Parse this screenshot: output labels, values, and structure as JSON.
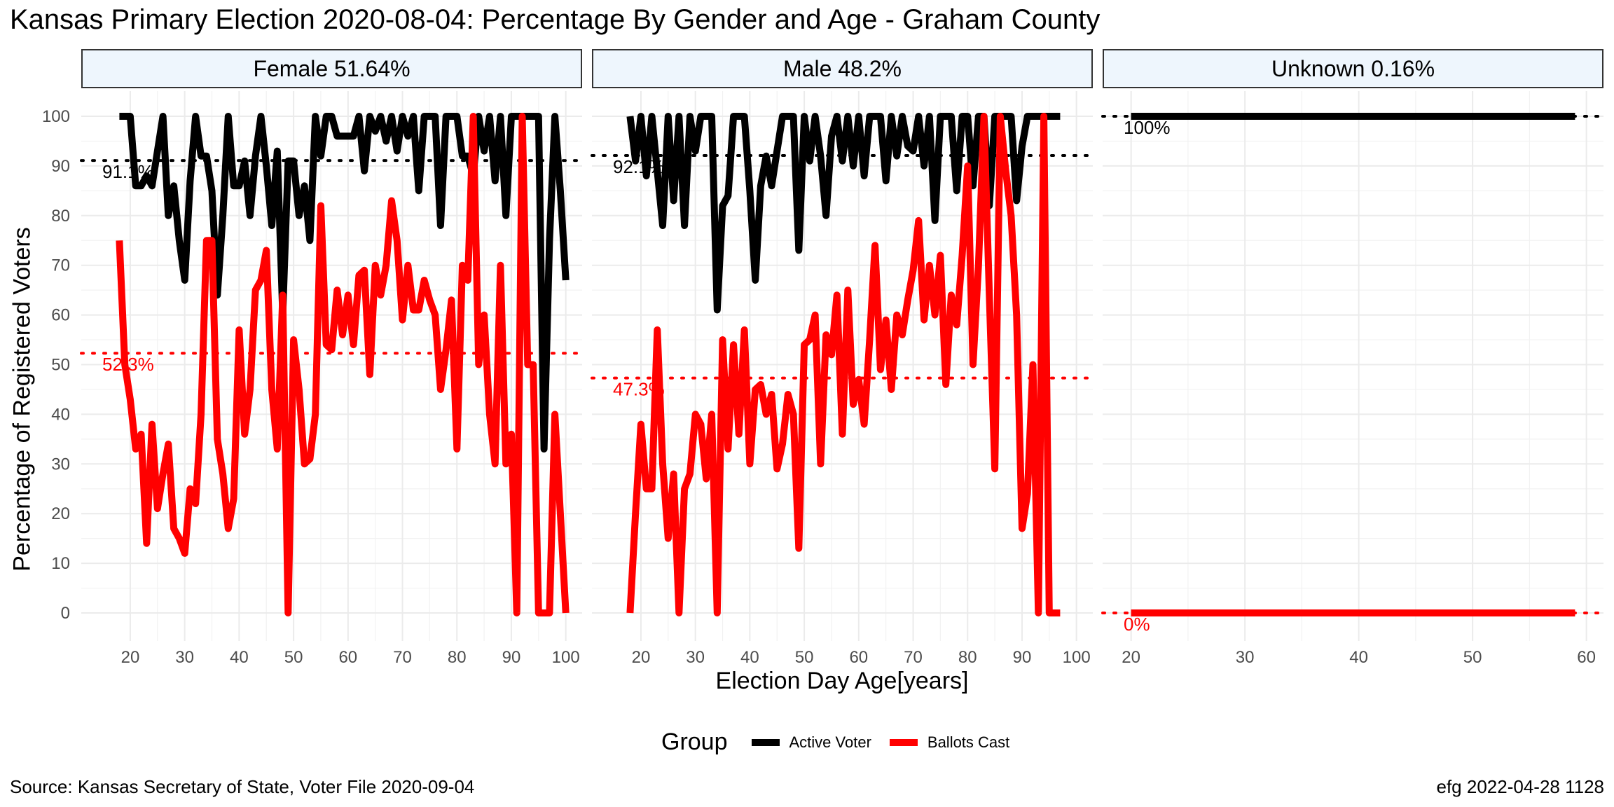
{
  "title": "Kansas Primary Election 2020-08-04:  Percentage By Gender and Age - Graham County",
  "footer": {
    "source": "Source:  Kansas Secretary of State, Voter File  2020-09-04",
    "stamp": "efg 2022-04-28 1128"
  },
  "colors": {
    "active": "#000000",
    "ballots": "#ff0000",
    "strip_bg": "#eef6fd",
    "grid": "#ebebeb"
  },
  "chart_data": {
    "type": "line",
    "xlabel": "Election Day Age[years]",
    "ylabel": "Percentage of Registered Voters",
    "ylim": [
      0,
      100
    ],
    "yticks": [
      0,
      10,
      20,
      30,
      40,
      50,
      60,
      70,
      80,
      90,
      100
    ],
    "legend": {
      "title": "Group",
      "position": "bottom",
      "items": [
        {
          "label": "Active Voter",
          "color": "#000000"
        },
        {
          "label": "Ballots Cast",
          "color": "#ff0000"
        }
      ]
    },
    "panels": [
      {
        "strip": "Female 51.64%",
        "xlim": [
          11,
          103
        ],
        "xticks": [
          20,
          30,
          40,
          50,
          60,
          70,
          80,
          90,
          100
        ],
        "ref_active": {
          "value": 91.1,
          "label": "91.1%"
        },
        "ref_ballots": {
          "value": 52.3,
          "label": "52.3%"
        },
        "active": {
          "x": [
            18,
            19,
            20,
            21,
            22,
            23,
            24,
            25,
            26,
            27,
            28,
            29,
            30,
            31,
            32,
            33,
            34,
            35,
            36,
            37,
            38,
            39,
            40,
            41,
            42,
            43,
            44,
            45,
            46,
            47,
            48,
            49,
            50,
            51,
            52,
            53,
            54,
            55,
            56,
            57,
            58,
            59,
            60,
            61,
            62,
            63,
            64,
            65,
            66,
            67,
            68,
            69,
            70,
            71,
            72,
            73,
            74,
            75,
            76,
            77,
            78,
            79,
            80,
            81,
            82,
            83,
            84,
            85,
            86,
            87,
            88,
            89,
            90,
            91,
            92,
            93,
            94,
            95,
            96,
            97,
            98,
            99,
            100
          ],
          "y": [
            100,
            100,
            100,
            86,
            86,
            88,
            86,
            93,
            100,
            80,
            86,
            75,
            67,
            87,
            100,
            92,
            92,
            85,
            64,
            80,
            100,
            86,
            86,
            91,
            80,
            92,
            100,
            90,
            78,
            93,
            60,
            91,
            91,
            80,
            86,
            75,
            100,
            92,
            100,
            100,
            96,
            96,
            96,
            96,
            100,
            89,
            100,
            97,
            100,
            95,
            100,
            93,
            100,
            96,
            100,
            85,
            100,
            100,
            100,
            78,
            100,
            100,
            100,
            92,
            92,
            88,
            100,
            93,
            100,
            87,
            100,
            80,
            100,
            100,
            100,
            100,
            100,
            100,
            33,
            75,
            100,
            85,
            67
          ]
        },
        "ballots": {
          "x": [
            18,
            19,
            20,
            21,
            22,
            23,
            24,
            25,
            26,
            27,
            28,
            29,
            30,
            31,
            32,
            33,
            34,
            35,
            36,
            37,
            38,
            39,
            40,
            41,
            42,
            43,
            44,
            45,
            46,
            47,
            48,
            49,
            50,
            51,
            52,
            53,
            54,
            55,
            56,
            57,
            58,
            59,
            60,
            61,
            62,
            63,
            64,
            65,
            66,
            67,
            68,
            69,
            70,
            71,
            72,
            73,
            74,
            75,
            76,
            77,
            78,
            79,
            80,
            81,
            82,
            83,
            84,
            85,
            86,
            87,
            88,
            89,
            90,
            91,
            92,
            93,
            94,
            95,
            96,
            97,
            98,
            99,
            100
          ],
          "y": [
            75,
            50,
            43,
            33,
            36,
            14,
            38,
            21,
            28,
            34,
            17,
            15,
            12,
            25,
            22,
            40,
            75,
            75,
            35,
            28,
            17,
            23,
            57,
            36,
            45,
            65,
            67,
            73,
            45,
            33,
            64,
            0,
            55,
            45,
            30,
            31,
            40,
            82,
            54,
            53,
            65,
            56,
            64,
            54,
            68,
            69,
            48,
            70,
            64,
            70,
            83,
            75,
            59,
            70,
            61,
            61,
            67,
            63,
            60,
            45,
            53,
            63,
            33,
            70,
            67,
            100,
            50,
            60,
            40,
            30,
            70,
            30,
            36,
            0,
            100,
            50,
            50,
            0,
            0,
            0,
            40,
            20,
            0
          ]
        }
      },
      {
        "strip": "Male 48.2%",
        "xlim": [
          11,
          103
        ],
        "xticks": [
          20,
          30,
          40,
          50,
          60,
          70,
          80,
          90,
          100
        ],
        "ref_active": {
          "value": 92.1,
          "label": "92.1%"
        },
        "ref_ballots": {
          "value": 47.3,
          "label": "47.3%"
        },
        "active": {
          "x": [
            18,
            19,
            20,
            21,
            22,
            23,
            24,
            25,
            26,
            27,
            28,
            29,
            30,
            31,
            32,
            33,
            34,
            35,
            36,
            37,
            38,
            39,
            40,
            41,
            42,
            43,
            44,
            45,
            46,
            47,
            48,
            49,
            50,
            51,
            52,
            53,
            54,
            55,
            56,
            57,
            58,
            59,
            60,
            61,
            62,
            63,
            64,
            65,
            66,
            67,
            68,
            69,
            70,
            71,
            72,
            73,
            74,
            75,
            76,
            77,
            78,
            79,
            80,
            81,
            82,
            83,
            84,
            85,
            86,
            87,
            88,
            89,
            90,
            91,
            92,
            93,
            94,
            95,
            96,
            97
          ],
          "y": [
            100,
            91,
            100,
            88,
            100,
            89,
            78,
            100,
            83,
            100,
            78,
            100,
            93,
            100,
            100,
            100,
            61,
            82,
            84,
            100,
            100,
            100,
            85,
            67,
            86,
            92,
            86,
            93,
            100,
            100,
            100,
            73,
            100,
            91,
            100,
            92,
            80,
            96,
            100,
            91,
            100,
            90,
            100,
            88,
            100,
            100,
            100,
            87,
            100,
            92,
            100,
            94,
            93,
            100,
            90,
            100,
            79,
            100,
            100,
            100,
            85,
            100,
            100,
            86,
            100,
            100,
            82,
            100,
            100,
            100,
            100,
            83,
            94,
            100,
            100,
            100,
            100,
            100,
            100,
            100
          ]
        },
        "ballots": {
          "x": [
            18,
            19,
            20,
            21,
            22,
            23,
            24,
            25,
            26,
            27,
            28,
            29,
            30,
            31,
            32,
            33,
            34,
            35,
            36,
            37,
            38,
            39,
            40,
            41,
            42,
            43,
            44,
            45,
            46,
            47,
            48,
            49,
            50,
            51,
            52,
            53,
            54,
            55,
            56,
            57,
            58,
            59,
            60,
            61,
            62,
            63,
            64,
            65,
            66,
            67,
            68,
            69,
            70,
            71,
            72,
            73,
            74,
            75,
            76,
            77,
            78,
            79,
            80,
            81,
            82,
            83,
            84,
            85,
            86,
            87,
            88,
            89,
            90,
            91,
            92,
            93,
            94,
            95,
            96,
            97
          ],
          "y": [
            0,
            20,
            38,
            25,
            25,
            57,
            30,
            15,
            28,
            0,
            25,
            28,
            40,
            38,
            27,
            40,
            0,
            55,
            33,
            54,
            36,
            57,
            30,
            45,
            46,
            40,
            44,
            29,
            34,
            44,
            40,
            13,
            54,
            55,
            60,
            30,
            56,
            52,
            64,
            36,
            65,
            42,
            47,
            38,
            55,
            74,
            49,
            59,
            45,
            60,
            56,
            63,
            69,
            79,
            59,
            70,
            60,
            72,
            46,
            64,
            58,
            72,
            90,
            50,
            70,
            100,
            64,
            29,
            100,
            89,
            80,
            60,
            17,
            24,
            50,
            0,
            100,
            0,
            0,
            0
          ]
        }
      },
      {
        "strip": "Unknown 0.16%",
        "xlim": [
          17.5,
          61.5
        ],
        "xticks": [
          20,
          30,
          40,
          50,
          60
        ],
        "ref_active": {
          "value": 100,
          "label": "100%"
        },
        "ref_ballots": {
          "value": 0,
          "label": "0%"
        },
        "active": {
          "x": [
            20,
            59
          ],
          "y": [
            100,
            100
          ]
        },
        "ballots": {
          "x": [
            20,
            59
          ],
          "y": [
            0,
            0
          ]
        }
      }
    ]
  }
}
